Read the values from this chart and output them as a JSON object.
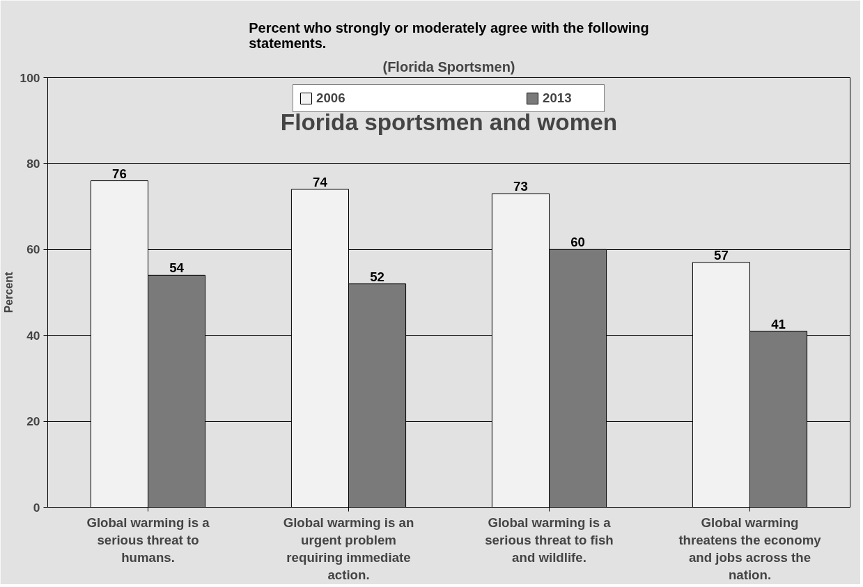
{
  "chart_data": {
    "type": "bar",
    "title": "Percent who strongly or moderately agree with the following statements.",
    "subtitle": "(Florida Sportsmen)",
    "ylabel": "Percent",
    "annotations": [
      "Florida sportsmen and women"
    ],
    "categories": [
      "Global warming is a serious threat to humans.",
      "Global warming is an urgent problem requiring immediate action.",
      "Global warming is a serious threat to fish and wildlife.",
      "Global warming threatens the economy and jobs across the nation."
    ],
    "series": [
      {
        "name": "2006",
        "color": "#f2f2f2",
        "values": [
          76,
          74,
          73,
          57
        ]
      },
      {
        "name": "2013",
        "color": "#7a7a7a",
        "values": [
          54,
          52,
          60,
          41
        ]
      }
    ],
    "ylim": [
      0,
      100
    ],
    "yticks": [
      0,
      20,
      40,
      60,
      80,
      100
    ],
    "grid": "y",
    "legend": "top",
    "data_labels": true
  }
}
